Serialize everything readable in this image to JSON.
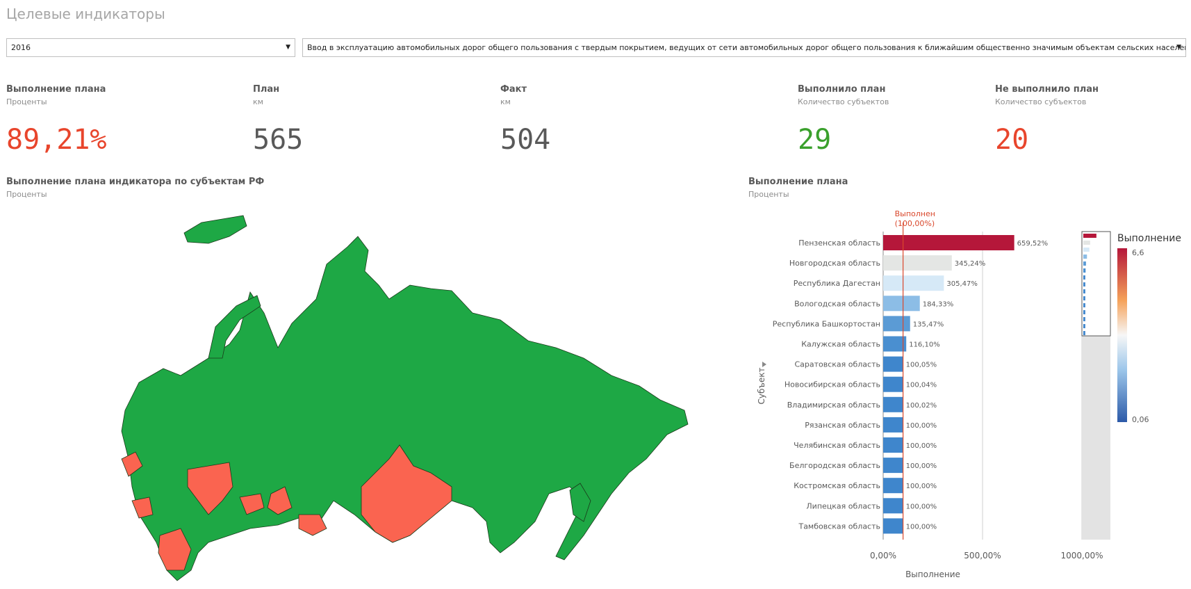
{
  "header": {
    "title": "Целевые индикаторы"
  },
  "filters": {
    "year": "2016",
    "indicator": "Ввод в эксплуатацию автомобильных дорог общего пользования с твердым покрытием, ведущих от сети автомобильных дорог общего пользования к ближайшим общественно значимым объектам сельских населенных пунктов"
  },
  "kpis": [
    {
      "title": "Выполнение плана",
      "subtitle": "Проценты",
      "value": "89,21%",
      "color": "#e8452c"
    },
    {
      "title": "План",
      "subtitle": "км",
      "value": "565",
      "color": "#595959"
    },
    {
      "title": "Факт",
      "subtitle": "км",
      "value": "504",
      "color": "#595959"
    },
    {
      "title": "Выполнило план",
      "subtitle": "Количество субъектов",
      "value": "29",
      "color": "#3aa02c"
    },
    {
      "title": "Не выполнило план",
      "subtitle": "Количество субъектов",
      "value": "20",
      "color": "#e8452c"
    }
  ],
  "map": {
    "title": "Выполнение плана индикатора по субъектам РФ",
    "subtitle": "Проценты"
  },
  "chart_data": {
    "type": "hbar",
    "title": "Выполнение плана",
    "subtitle": "Проценты",
    "x_label": "Выполнение",
    "y_label": "Субъект",
    "categories": [
      "Пензенская область",
      "Новгородская область",
      "Республика Дагестан",
      "Вологодская область",
      "Республика Башкортостан",
      "Калужская область",
      "Саратовская область",
      "Новосибирская область",
      "Владимирская область",
      "Рязанская область",
      "Челябинская область",
      "Белгородская область",
      "Костромская область",
      "Липецкая область",
      "Тамбовская область"
    ],
    "values": [
      659.52,
      345.24,
      305.47,
      184.33,
      135.47,
      116.1,
      100.05,
      100.04,
      100.02,
      100.0,
      100.0,
      100.0,
      100.0,
      100.0,
      100.0
    ],
    "value_labels": [
      "659,52%",
      "345,24%",
      "305,47%",
      "184,33%",
      "135,47%",
      "116,10%",
      "100,05%",
      "100,04%",
      "100,02%",
      "100,00%",
      "100,00%",
      "100,00%",
      "100,00%",
      "100,00%",
      "100,00%"
    ],
    "colors": [
      "#b5173a",
      "#e4e6e4",
      "#d6e9f7",
      "#8cbde6",
      "#5b9bd5",
      "#4a8fd0",
      "#3f86cc",
      "#3f86cc",
      "#3f86cc",
      "#3f86cc",
      "#3f86cc",
      "#3f86cc",
      "#3f86cc",
      "#3f86cc",
      "#3f86cc"
    ],
    "xlim": [
      0,
      1000
    ],
    "xticks": [
      {
        "value": 0,
        "label": "0,00%"
      },
      {
        "value": 500,
        "label": "500,00%"
      },
      {
        "value": 1000,
        "label": "1000,00%"
      }
    ],
    "grid": true,
    "reference_line": {
      "value": 100,
      "label": "Выполнен",
      "value_label": "(100,00%)",
      "color": "#d9472b"
    },
    "colorbar": {
      "title": "Выполнение",
      "max_label": "6,6",
      "min_label": "0,06"
    }
  }
}
